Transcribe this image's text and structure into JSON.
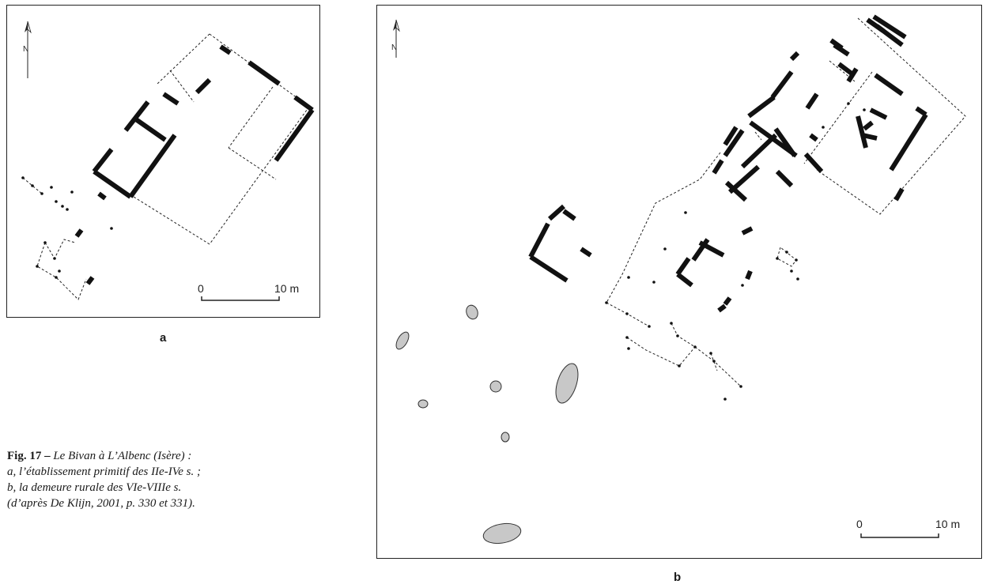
{
  "panels": {
    "a": {
      "letter": "a",
      "scale_zero": "0",
      "scale_end": "10 m",
      "north": "N"
    },
    "b": {
      "letter": "b",
      "scale_zero": "0",
      "scale_end": "10 m",
      "north": "N"
    }
  },
  "caption": {
    "label": "Fig. 17 –",
    "text_line1": "Le Bivan à L’Albenc (Isère) :",
    "text_line2": "a, l’établissement primitif des IIe-IVe s. ;",
    "text_line3": "b, la demeure rurale des VIe-VIIIe s.",
    "text_line4": "(d’après De Klijn, 2001, p. 330 et 331)."
  }
}
